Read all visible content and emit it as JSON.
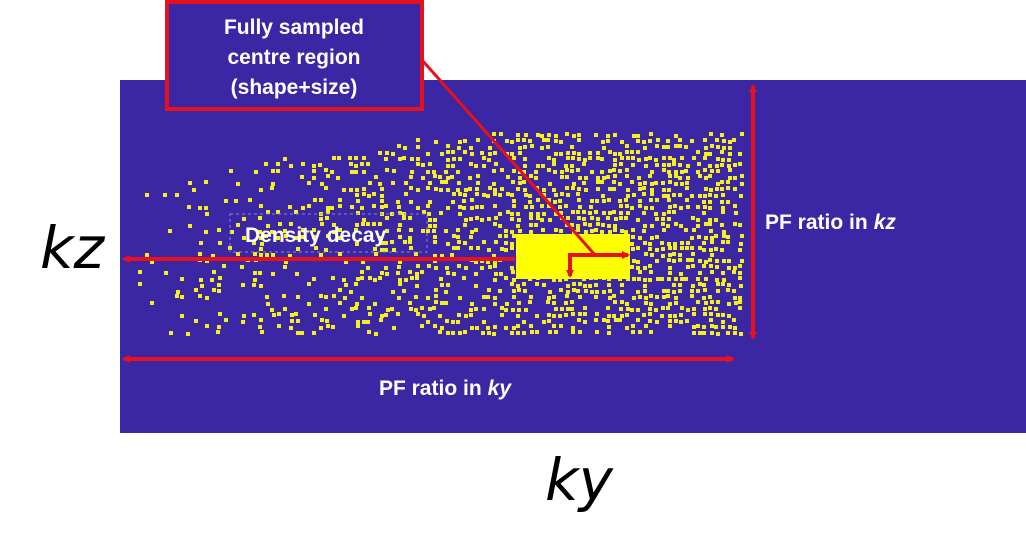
{
  "annotation": {
    "lines": [
      "Fully sampled",
      "centre region",
      "(shape+size)"
    ]
  },
  "density_label": "Density decay",
  "pf_kz": {
    "text": "PF ratio in",
    "axis": "kz"
  },
  "pf_ky": {
    "text": "PF ratio in",
    "axis": "ky"
  },
  "axes": {
    "vertical": "kz",
    "horizontal": "ky"
  }
}
